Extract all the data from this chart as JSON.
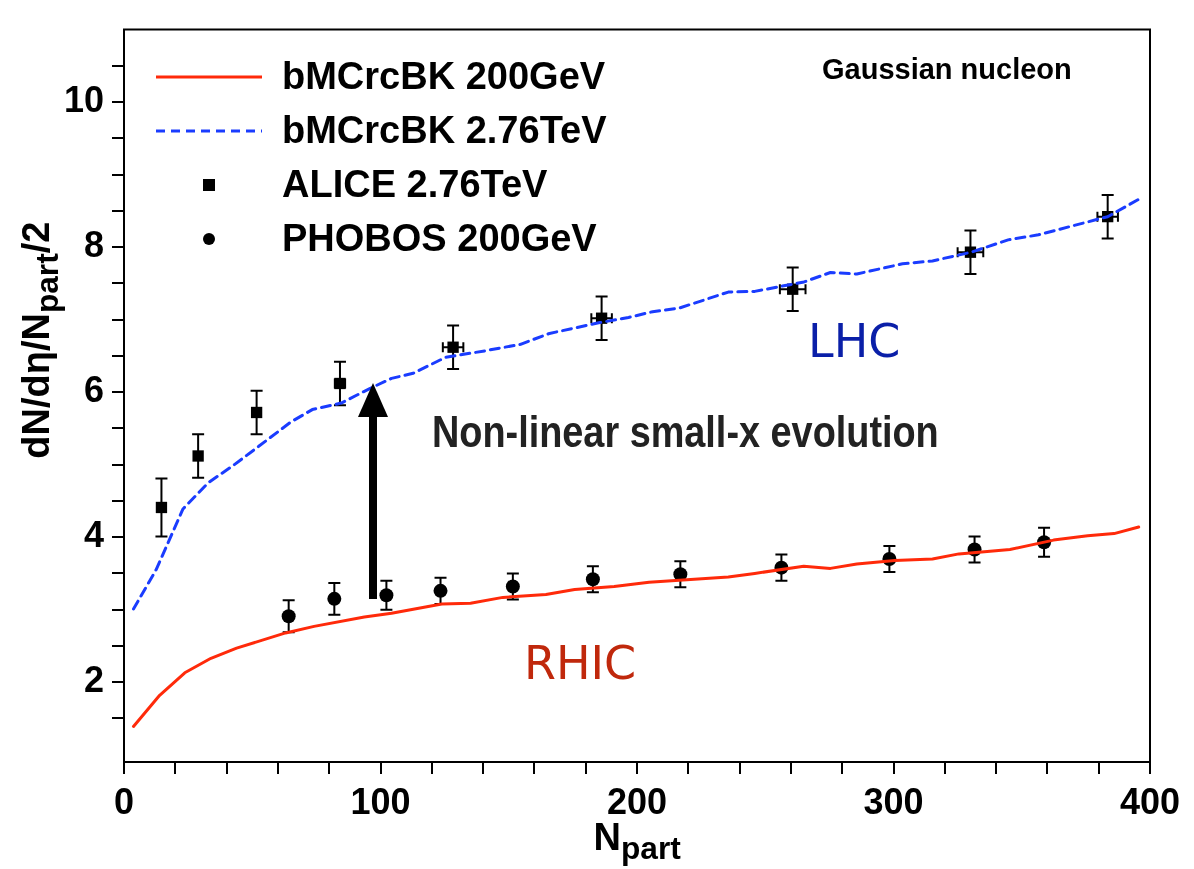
{
  "chart_data": {
    "type": "line",
    "xlabel": "N$_{part}$",
    "ylabel": "dN/dη/N$_{part}$/2",
    "xlim": [
      0,
      400
    ],
    "ylim": [
      0.9,
      11
    ],
    "xticks": [
      0,
      {
        "value": 20,
        "label": null
      },
      {
        "value": 40,
        "label": null
      },
      {
        "value": 60,
        "label": null
      },
      {
        "value": 80,
        "label": null
      },
      100,
      {
        "value": 120,
        "label": null
      },
      {
        "value": 140,
        "label": null
      },
      {
        "value": 160,
        "label": null
      },
      {
        "value": 180,
        "label": null
      },
      200,
      {
        "value": 220,
        "label": null
      },
      {
        "value": 240,
        "label": null
      },
      {
        "value": 260,
        "label": null
      },
      {
        "value": 280,
        "label": null
      },
      300,
      {
        "value": 320,
        "label": null
      },
      {
        "value": 340,
        "label": null
      },
      {
        "value": 360,
        "label": null
      },
      {
        "value": 380,
        "label": null
      },
      400
    ],
    "yticks": [
      {
        "value": 1.5,
        "label": null
      },
      2,
      {
        "value": 2.5,
        "label": null
      },
      {
        "value": 3,
        "label": null
      },
      {
        "value": 3.5,
        "label": null
      },
      4,
      {
        "value": 4.5,
        "label": null
      },
      {
        "value": 5,
        "label": null
      },
      {
        "value": 5.5,
        "label": null
      },
      6,
      {
        "value": 6.5,
        "label": null
      },
      {
        "value": 7,
        "label": null
      },
      {
        "value": 7.5,
        "label": null
      },
      8,
      {
        "value": 8.5,
        "label": null
      },
      {
        "value": 9,
        "label": null
      },
      {
        "value": 9.5,
        "label": null
      },
      10,
      {
        "value": 10.5,
        "label": null
      }
    ],
    "grid": false,
    "legend": "top left",
    "series": [
      {
        "name": "bMCrcBK 200GeV",
        "color": "#ff2a0a",
        "line_style": "solid",
        "marker": "none",
        "x": [
          3.7,
          13.9,
          23.7,
          33.9,
          43.9,
          63,
          74.1,
          93.7,
          104.3,
          123.9,
          135.1,
          147.7,
          164.5,
          175.7,
          191.1,
          204.7,
          235.6,
          245.9,
          265,
          275.4,
          285.7,
          300.5,
          315.2,
          325.5,
          345.4,
          362.4,
          375.7,
          386,
          395.6
        ],
        "values": [
          1.39,
          1.82,
          2.13,
          2.33,
          2.47,
          2.68,
          2.77,
          2.9,
          2.95,
          3.08,
          3.09,
          3.17,
          3.21,
          3.28,
          3.32,
          3.38,
          3.45,
          3.5,
          3.6,
          3.57,
          3.63,
          3.68,
          3.7,
          3.77,
          3.83,
          3.96,
          4.02,
          4.05,
          4.14
        ]
      },
      {
        "name": "bMCrcBK 2.76TeV",
        "color": "#1a3cff",
        "line_style": "dashed",
        "marker": "none",
        "x": [
          3.7,
          12.5,
          23,
          32.8,
          42.6,
          52.4,
          65.1,
          73.4,
          84.7,
          95.8,
          104.3,
          112.7,
          125.3,
          140.7,
          154.6,
          165.9,
          185.5,
          196.7,
          206.1,
          216.5,
          235.6,
          245.9,
          265.1,
          275.4,
          285.7,
          303.5,
          315.2,
          330.3,
          344.7,
          356.5,
          383.5,
          395.6
        ],
        "values": [
          3.01,
          3.55,
          4.39,
          4.75,
          4.99,
          5.25,
          5.59,
          5.76,
          5.85,
          6.05,
          6.19,
          6.26,
          6.48,
          6.57,
          6.66,
          6.81,
          6.96,
          7.03,
          7.11,
          7.16,
          7.38,
          7.39,
          7.52,
          7.65,
          7.63,
          7.77,
          7.81,
          7.93,
          8.1,
          8.17,
          8.42,
          8.66
        ]
      },
      {
        "name": "ALICE 2.76TeV",
        "type": "scatter",
        "color": "#000000",
        "marker": "square",
        "x": [
          14.6,
          28.9,
          51.7,
          84.2,
          128.3,
          186.2,
          260.7,
          330,
          383.5
        ],
        "values": [
          4.41,
          5.12,
          5.72,
          6.12,
          6.62,
          7.02,
          7.42,
          7.93,
          8.42
        ],
        "errors": [
          0.4,
          0.3,
          0.3,
          0.3,
          0.3,
          0.3,
          0.3,
          0.3,
          0.3
        ],
        "xerrors": [
          null,
          null,
          null,
          2,
          4,
          4,
          5,
          5,
          4
        ]
      },
      {
        "name": "PHOBOS 200GeV",
        "type": "scatter",
        "color": "#000000",
        "marker": "circle",
        "x": [
          64.2,
          82,
          102.3,
          123.4,
          151.6,
          182.8,
          216.9,
          256.3,
          298.4,
          331.6,
          358.7
        ],
        "values": [
          2.91,
          3.15,
          3.2,
          3.26,
          3.32,
          3.42,
          3.49,
          3.58,
          3.7,
          3.83,
          3.93
        ],
        "errors": [
          0.22,
          0.22,
          0.2,
          0.18,
          0.18,
          0.18,
          0.18,
          0.18,
          0.18,
          0.18,
          0.2
        ]
      }
    ],
    "annotations": [
      "Gaussian nucleon",
      "LHC",
      "RHIC",
      "Non-linear small-x evolution"
    ]
  }
}
